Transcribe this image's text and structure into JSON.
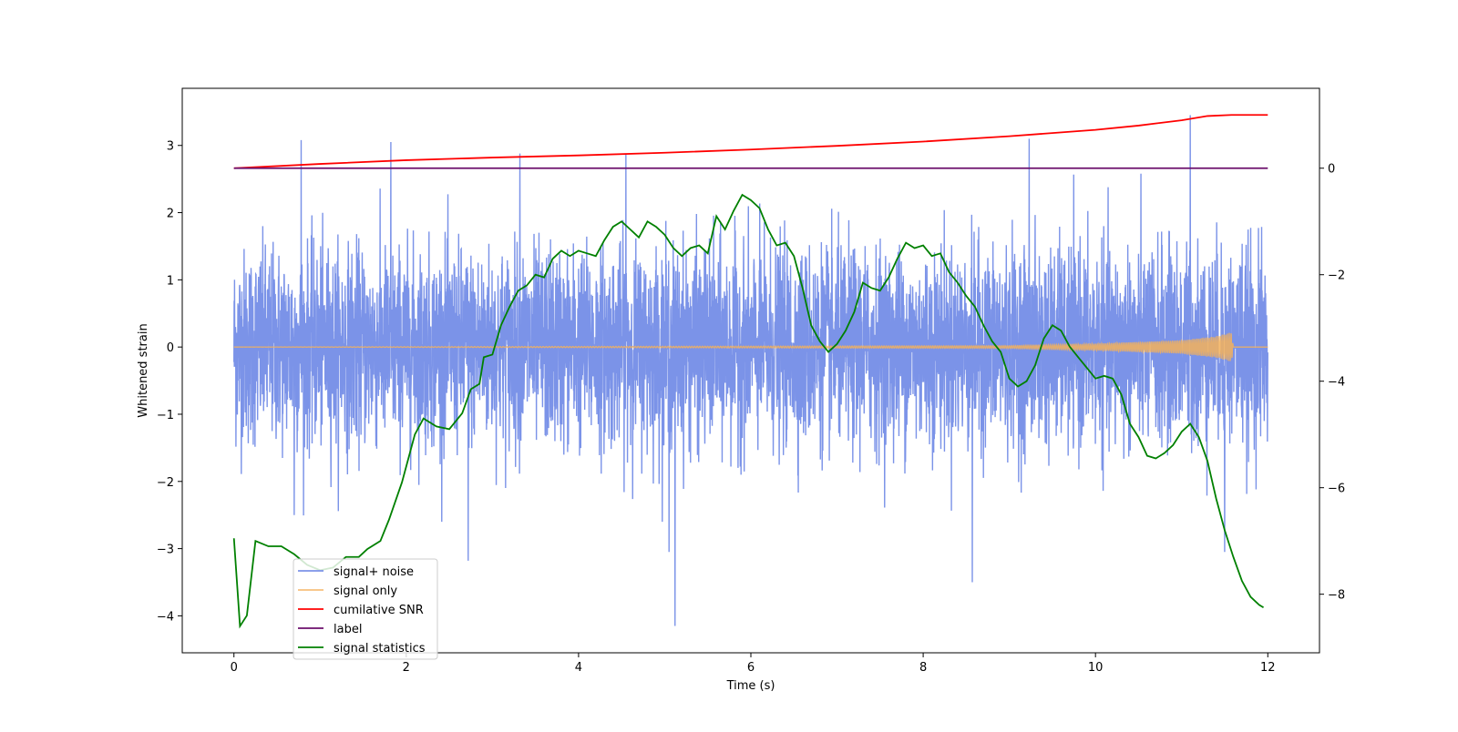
{
  "chart_data": {
    "type": "line",
    "title": "",
    "xlabel": "Time (s)",
    "ylabel": "Whitened strain",
    "xlim": [
      -0.6,
      12.6
    ],
    "ylim": [
      -4.55,
      3.85
    ],
    "y2lim": [
      -9.1,
      1.5
    ],
    "xticks": [
      0,
      2,
      4,
      6,
      8,
      10,
      12
    ],
    "yticks": [
      3,
      2,
      1,
      0,
      -1,
      -2,
      -3,
      -4
    ],
    "y2ticks": [
      0,
      -2,
      -4,
      -6,
      -8
    ],
    "legend_position": "lower-left",
    "legend": [
      "signal+ noise",
      "signal only",
      "cumilative SNR",
      "label",
      "signal statistics"
    ],
    "colors": {
      "noise": "#7b93e8",
      "signal": "#f5b25a",
      "snr": "#ff0000",
      "label": "#6b0f6b",
      "stats": "#008000"
    },
    "series": [
      {
        "name": "signal+ noise",
        "axis": "left",
        "description": "dense noise trace between roughly -2 and 2 with spikes",
        "x_range": [
          0,
          12
        ],
        "spikes": [
          [
            0.78,
            3.08
          ],
          [
            1.82,
            3.05
          ],
          [
            3.32,
            2.88
          ],
          [
            4.55,
            2.88
          ],
          [
            9.23,
            3.1
          ],
          [
            11.1,
            3.45
          ],
          [
            5.12,
            -4.15
          ],
          [
            8.57,
            -3.5
          ],
          [
            2.72,
            -3.18
          ],
          [
            5.05,
            -3.05
          ],
          [
            11.5,
            -3.05
          ],
          [
            0.7,
            -2.5
          ]
        ]
      },
      {
        "name": "signal only",
        "axis": "left",
        "x": [
          0,
          9,
          10,
          11,
          11.4,
          11.58,
          11.6,
          12
        ],
        "amplitude": [
          0.0,
          0.02,
          0.05,
          0.1,
          0.16,
          0.22,
          0.0,
          0.0
        ]
      },
      {
        "name": "cumilative SNR",
        "axis": "right",
        "x": [
          0,
          1,
          2,
          3,
          4,
          5,
          6,
          7,
          8,
          9,
          10,
          10.5,
          11,
          11.3,
          11.58,
          12
        ],
        "values": [
          0.0,
          0.08,
          0.15,
          0.2,
          0.24,
          0.29,
          0.35,
          0.42,
          0.5,
          0.6,
          0.72,
          0.8,
          0.9,
          0.98,
          1.0,
          1.0
        ]
      },
      {
        "name": "label",
        "axis": "right",
        "x": [
          0,
          12
        ],
        "values": [
          0.0,
          0.0
        ]
      },
      {
        "name": "signal statistics",
        "axis": "right",
        "x": [
          0,
          0.07,
          0.15,
          0.25,
          0.4,
          0.55,
          0.7,
          0.85,
          1.0,
          1.15,
          1.3,
          1.45,
          1.55,
          1.7,
          1.8,
          1.95,
          2.1,
          2.2,
          2.35,
          2.5,
          2.65,
          2.75,
          2.85,
          2.9,
          3.0,
          3.1,
          3.2,
          3.3,
          3.4,
          3.5,
          3.6,
          3.7,
          3.8,
          3.9,
          4.0,
          4.1,
          4.2,
          4.3,
          4.4,
          4.5,
          4.6,
          4.7,
          4.8,
          4.9,
          5.0,
          5.1,
          5.2,
          5.3,
          5.4,
          5.5,
          5.6,
          5.7,
          5.8,
          5.9,
          6.0,
          6.1,
          6.2,
          6.3,
          6.4,
          6.5,
          6.6,
          6.7,
          6.8,
          6.9,
          7.0,
          7.1,
          7.2,
          7.3,
          7.4,
          7.5,
          7.6,
          7.7,
          7.8,
          7.9,
          8.0,
          8.1,
          8.2,
          8.3,
          8.4,
          8.5,
          8.6,
          8.7,
          8.8,
          8.9,
          9.0,
          9.1,
          9.2,
          9.3,
          9.4,
          9.5,
          9.6,
          9.7,
          9.8,
          9.9,
          10.0,
          10.1,
          10.2,
          10.3,
          10.4,
          10.5,
          10.6,
          10.7,
          10.8,
          10.9,
          11.0,
          11.1,
          11.2,
          11.3,
          11.4,
          11.5,
          11.6,
          11.7,
          11.8,
          11.9,
          11.95
        ],
        "values": [
          -6.95,
          -8.6,
          -8.4,
          -7.0,
          -7.1,
          -7.1,
          -7.25,
          -7.45,
          -7.55,
          -7.5,
          -7.3,
          -7.3,
          -7.15,
          -7.0,
          -6.6,
          -5.9,
          -5.0,
          -4.7,
          -4.85,
          -4.9,
          -4.6,
          -4.15,
          -4.05,
          -3.55,
          -3.5,
          -2.95,
          -2.6,
          -2.3,
          -2.2,
          -2.0,
          -2.05,
          -1.7,
          -1.55,
          -1.65,
          -1.55,
          -1.6,
          -1.65,
          -1.35,
          -1.1,
          -1.0,
          -1.15,
          -1.3,
          -1.0,
          -1.1,
          -1.25,
          -1.5,
          -1.65,
          -1.5,
          -1.45,
          -1.6,
          -0.9,
          -1.15,
          -0.8,
          -0.5,
          -0.6,
          -0.75,
          -1.15,
          -1.45,
          -1.4,
          -1.65,
          -2.25,
          -2.95,
          -3.25,
          -3.45,
          -3.3,
          -3.05,
          -2.7,
          -2.15,
          -2.25,
          -2.3,
          -2.05,
          -1.7,
          -1.4,
          -1.5,
          -1.45,
          -1.65,
          -1.6,
          -1.95,
          -2.15,
          -2.4,
          -2.6,
          -2.95,
          -3.25,
          -3.45,
          -3.95,
          -4.1,
          -4.0,
          -3.7,
          -3.2,
          -2.95,
          -3.05,
          -3.35,
          -3.55,
          -3.75,
          -3.95,
          -3.9,
          -3.95,
          -4.25,
          -4.8,
          -5.05,
          -5.4,
          -5.45,
          -5.35,
          -5.2,
          -4.95,
          -4.8,
          -5.05,
          -5.5,
          -6.2,
          -6.8,
          -7.3,
          -7.75,
          -8.05,
          -8.2,
          -8.25
        ]
      }
    ]
  }
}
